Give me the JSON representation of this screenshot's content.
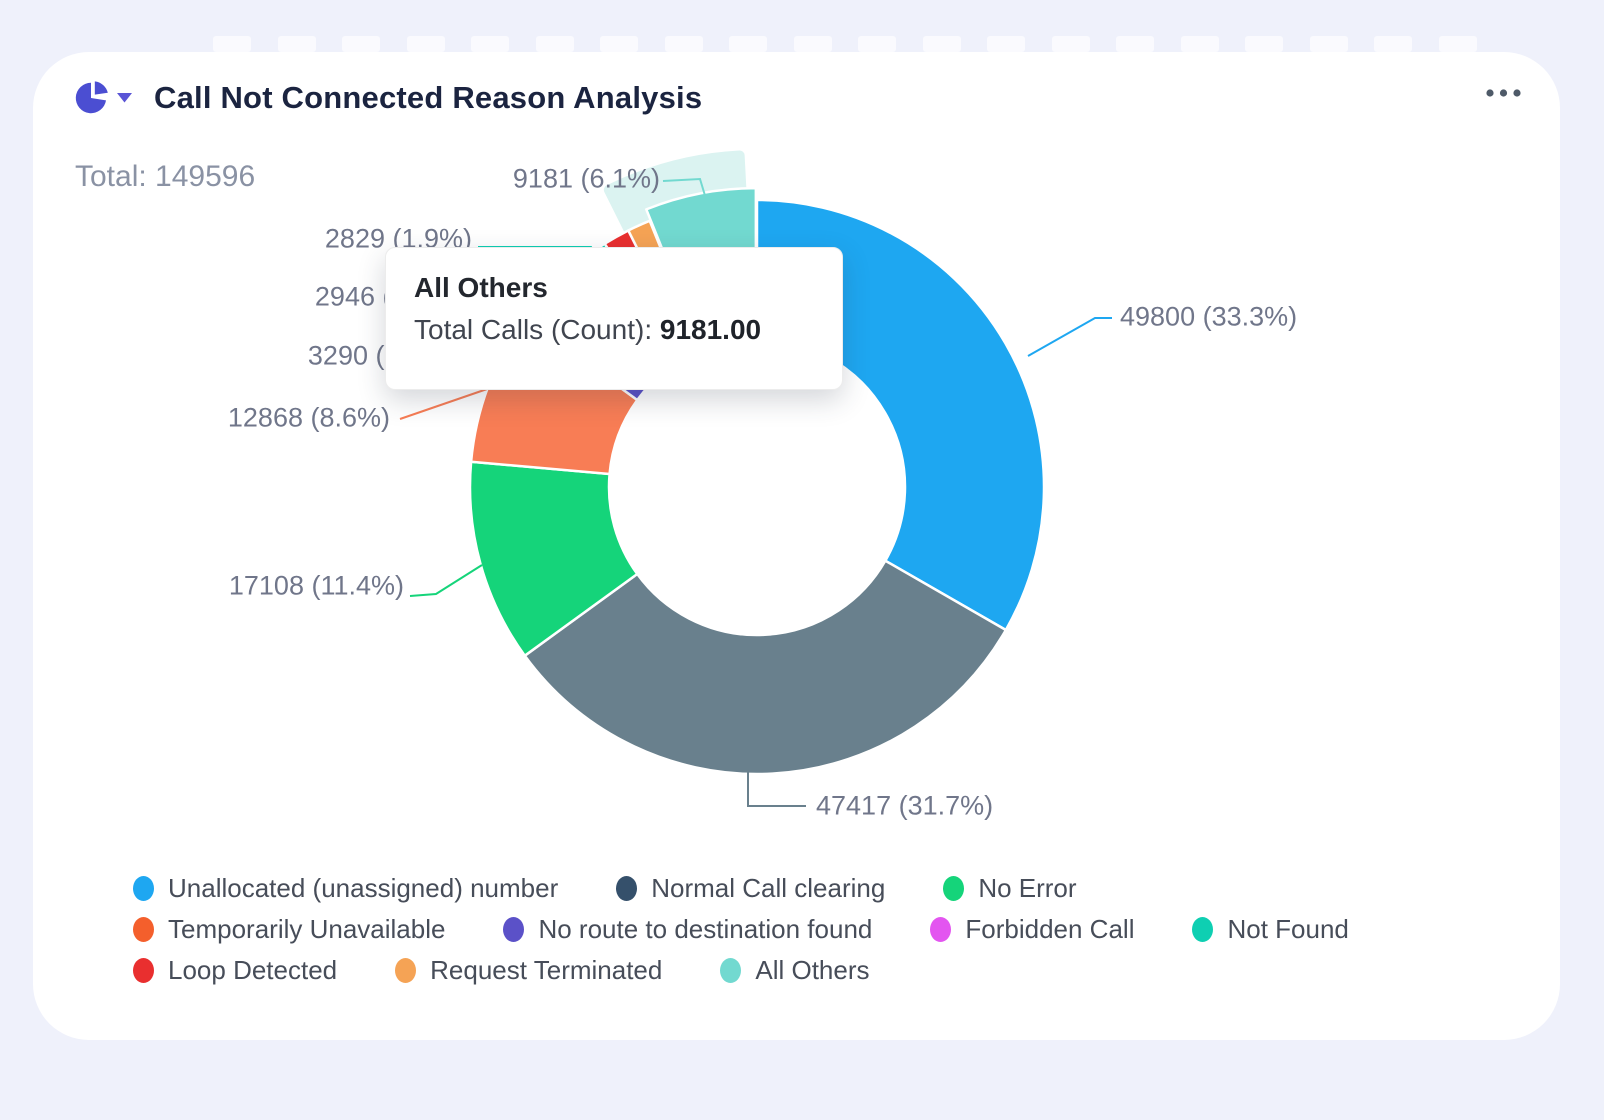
{
  "header": {
    "icon": "pie-chart-icon",
    "chart_type_selector": "donut",
    "title": "Call Not Connected Reason Analysis",
    "menu": "..."
  },
  "total": {
    "label": "Total: 149596",
    "value": 149596
  },
  "tooltip": {
    "title": "All Others",
    "series_label": "Total Calls (Count)",
    "value": "9181.00"
  },
  "chart_data": {
    "type": "pie",
    "donut": true,
    "title": "Call Not Connected Reason Analysis",
    "total": 149596,
    "series_name": "Total Calls (Count)",
    "legend_position": "bottom",
    "slices": [
      {
        "name": "Unallocated (unassigned) number",
        "value": 49800,
        "pct": 33.3,
        "color": "#1EA7F1",
        "label": "49800 (33.3%)"
      },
      {
        "name": "Normal Call clearing",
        "value": 47417,
        "pct": 31.7,
        "color": "#69808D",
        "legend_color": "#35506B",
        "label": "47417 (31.7%)"
      },
      {
        "name": "No Error",
        "value": 17108,
        "pct": 11.4,
        "color": "#15D47A",
        "label": "17108 (11.4%)"
      },
      {
        "name": "Temporarily Unavailable",
        "value": 12868,
        "pct": 8.6,
        "color": "#F87D55",
        "legend_color": "#F45F2C",
        "label": "12868 (8.6%)"
      },
      {
        "name": "No route to destination found",
        "value": 3290,
        "pct": 2.2,
        "color": "#5B51C8",
        "label": "3290 (2.2%)"
      },
      {
        "name": "Forbidden Call",
        "value": 2946,
        "pct": 2.0,
        "color": "#E355F0",
        "label": "2946 (2.0%)"
      },
      {
        "name": "Not Found",
        "value": 2829,
        "pct": 1.9,
        "color": "#0ECFB2",
        "label": "2829 (1.9%)"
      },
      {
        "name": "Loop Detected",
        "value": null,
        "pct": 1.5,
        "pct_estimated": true,
        "color": "#E92F2F",
        "label": ""
      },
      {
        "name": "Request Terminated",
        "value": null,
        "pct": 1.3,
        "pct_estimated": true,
        "color": "#F5A355",
        "label": ""
      },
      {
        "name": "All Others",
        "value": 9181,
        "pct": 6.1,
        "color": "#72D9D0",
        "label": "9181 (6.1%)",
        "highlighted": true
      }
    ],
    "legend_rows": [
      [
        0,
        1,
        2
      ],
      [
        3,
        4,
        5,
        6
      ],
      [
        7,
        8,
        9
      ]
    ]
  }
}
